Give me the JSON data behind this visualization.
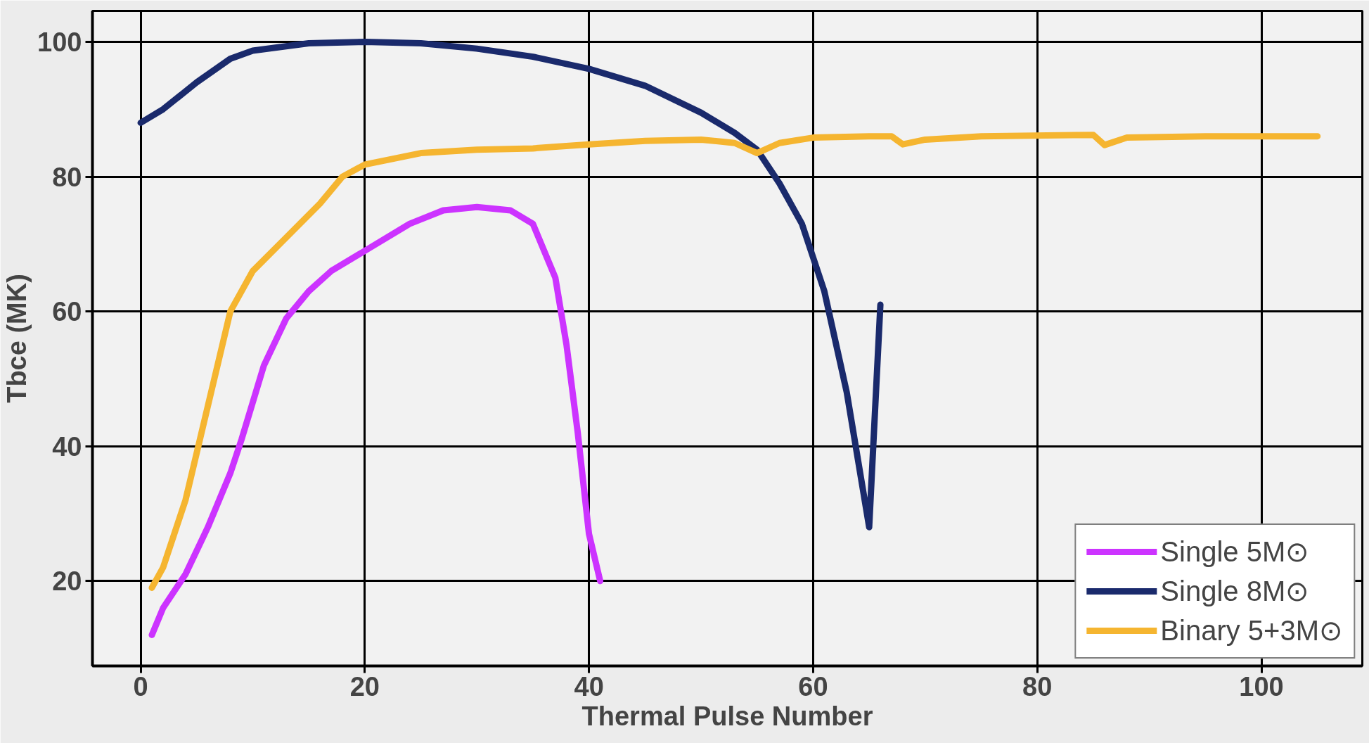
{
  "chart_data": {
    "type": "line",
    "xlabel": "Thermal Pulse Number",
    "ylabel": "Tbce (MK)",
    "xlim": [
      -4.3,
      109
    ],
    "ylim": [
      7.4,
      104.6
    ],
    "xticks": [
      0,
      20,
      40,
      60,
      80,
      100
    ],
    "yticks": [
      20,
      40,
      60,
      80,
      100
    ],
    "grid": true,
    "legend": "bottom right",
    "line_style": "solid",
    "series": [
      {
        "name": "Single 5M⊙",
        "color": "#cc33ff",
        "x": [
          1,
          2,
          4,
          6,
          8,
          9,
          11,
          13,
          15,
          17,
          20,
          24,
          27,
          30,
          33,
          35,
          37,
          38,
          39,
          40,
          41
        ],
        "values": [
          12,
          16,
          21,
          28,
          36,
          41,
          52,
          59,
          63,
          66,
          69,
          73,
          75,
          75.5,
          75,
          73,
          65,
          55,
          42,
          27,
          20
        ]
      },
      {
        "name": "Single 8M⊙",
        "color": "#1a2a6c",
        "x": [
          0,
          2,
          5,
          8,
          10,
          15,
          20,
          25,
          30,
          35,
          40,
          45,
          50,
          53,
          55,
          57,
          59,
          61,
          63,
          64,
          65,
          66
        ],
        "values": [
          88,
          90,
          94,
          97.5,
          98.7,
          99.8,
          100,
          99.8,
          99,
          97.8,
          96,
          93.5,
          89.5,
          86.5,
          84,
          79,
          73,
          63,
          48,
          38,
          28,
          61
        ]
      },
      {
        "name": "Binary 5+3M⊙",
        "color": "#f5b530",
        "x": [
          1,
          2,
          4,
          6,
          7,
          8,
          10,
          13,
          16,
          18,
          20,
          25,
          30,
          35,
          40,
          45,
          50,
          53,
          55,
          57,
          60,
          65,
          67,
          68,
          70,
          75,
          85,
          86,
          88,
          95,
          105
        ],
        "values": [
          19,
          22,
          32,
          46,
          53,
          60,
          66,
          71,
          76,
          80,
          81.8,
          83.5,
          84,
          84.2,
          84.8,
          85.3,
          85.5,
          85,
          83.5,
          85,
          85.8,
          86,
          86,
          84.8,
          85.5,
          86,
          86.2,
          84.7,
          85.8,
          86,
          86
        ]
      }
    ]
  }
}
